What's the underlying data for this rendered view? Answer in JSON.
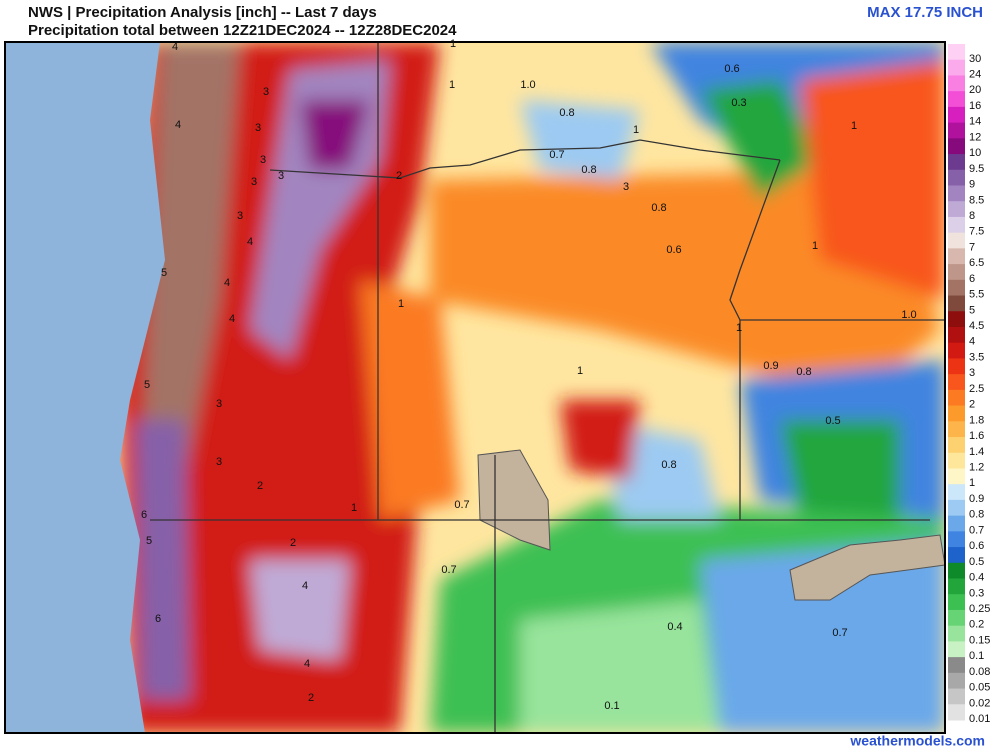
{
  "header": {
    "title_line1": "NWS | Precipitation Analysis [inch] -- Last 7 days",
    "title_line2": "Precipitation total between 12Z21DEC2024 -- 12Z28DEC2024",
    "max_label": "MAX 17.75 INCH"
  },
  "legend": {
    "items": [
      {
        "label": "30",
        "color": "#fdd0f4"
      },
      {
        "label": "24",
        "color": "#fbaaec"
      },
      {
        "label": "20",
        "color": "#f97fe3"
      },
      {
        "label": "16",
        "color": "#f24fd6"
      },
      {
        "label": "14",
        "color": "#d61fbe"
      },
      {
        "label": "12",
        "color": "#b0129e"
      },
      {
        "label": "10",
        "color": "#860a7c"
      },
      {
        "label": "9.5",
        "color": "#6c3a8e"
      },
      {
        "label": "9",
        "color": "#8660a8"
      },
      {
        "label": "8.5",
        "color": "#a285c0"
      },
      {
        "label": "8",
        "color": "#bfaad6"
      },
      {
        "label": "7.5",
        "color": "#dccfe8"
      },
      {
        "label": "7",
        "color": "#f0e2dc"
      },
      {
        "label": "6.5",
        "color": "#d8b8ae"
      },
      {
        "label": "6",
        "color": "#bf968a"
      },
      {
        "label": "5.5",
        "color": "#a37366"
      },
      {
        "label": "5",
        "color": "#7f4a3c"
      },
      {
        "label": "4.5",
        "color": "#8e0e0e"
      },
      {
        "label": "4",
        "color": "#b01010"
      },
      {
        "label": "3.5",
        "color": "#d21a12"
      },
      {
        "label": "3",
        "color": "#ec3414"
      },
      {
        "label": "2.5",
        "color": "#f8561c"
      },
      {
        "label": "2",
        "color": "#fb7a22"
      },
      {
        "label": "1.8",
        "color": "#fc9a2c"
      },
      {
        "label": "1.6",
        "color": "#fdb44a"
      },
      {
        "label": "1.4",
        "color": "#fdd070"
      },
      {
        "label": "1.2",
        "color": "#fee69a"
      },
      {
        "label": "1",
        "color": "#fff6c8"
      },
      {
        "label": "0.9",
        "color": "#cce6fa"
      },
      {
        "label": "0.8",
        "color": "#9ccaf2"
      },
      {
        "label": "0.7",
        "color": "#6aa8ea"
      },
      {
        "label": "0.6",
        "color": "#3f84e0"
      },
      {
        "label": "0.5",
        "color": "#1e62cc"
      },
      {
        "label": "0.4",
        "color": "#0f8a2a"
      },
      {
        "label": "0.3",
        "color": "#22a63c"
      },
      {
        "label": "0.25",
        "color": "#3cc052"
      },
      {
        "label": "0.2",
        "color": "#66d474"
      },
      {
        "label": "0.15",
        "color": "#98e49c"
      },
      {
        "label": "0.1",
        "color": "#c8f2c4"
      },
      {
        "label": "0.08",
        "color": "#8a8a8a"
      },
      {
        "label": "0.05",
        "color": "#a8a8a8"
      },
      {
        "label": "0.02",
        "color": "#c6c6c6"
      },
      {
        "label": "0.01",
        "color": "#e2e2e2"
      }
    ]
  },
  "map": {
    "labels": [
      "4",
      "1",
      "1",
      "1.0",
      "0.6",
      "0.3",
      "4",
      "3",
      "3",
      "0.8",
      "1",
      "1",
      "0.7",
      "0.8",
      "3",
      "3",
      "3",
      "2",
      "3",
      "0.8",
      "3",
      "4",
      "0.6",
      "1",
      "5",
      "4",
      "1",
      "4",
      "1.0",
      "1",
      "5",
      "0.9",
      "0.8",
      "1",
      "3",
      "0.5",
      "3",
      "0.8",
      "2",
      "0.7",
      "1",
      "6",
      "5",
      "2",
      "0.7",
      "4",
      "6",
      "0.4",
      "0.7",
      "4",
      "2",
      "0.1"
    ]
  },
  "footer": {
    "site": "weathermodels.com"
  }
}
